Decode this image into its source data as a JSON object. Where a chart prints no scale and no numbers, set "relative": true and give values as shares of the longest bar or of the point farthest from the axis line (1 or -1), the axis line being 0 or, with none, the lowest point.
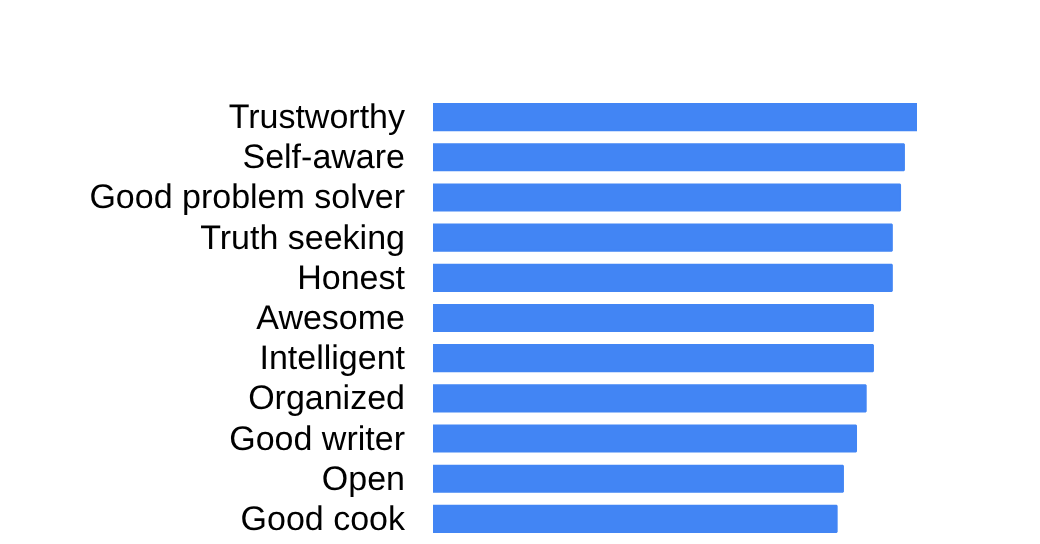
{
  "chart_data": {
    "type": "bar",
    "orientation": "horizontal",
    "relative": true,
    "color": "#4285f4",
    "categories": [
      "Trustworthy",
      "Self-aware",
      "Good problem solver",
      "Truth seeking",
      "Honest",
      "Awesome",
      "Intelligent",
      "Organized",
      "Good writer",
      "Open",
      "Good cook"
    ],
    "values": [
      1,
      0.973,
      0.965,
      0.948,
      0.948,
      0.909,
      0.909,
      0.894,
      0.874,
      0.847,
      0.834
    ],
    "grid": false
  }
}
